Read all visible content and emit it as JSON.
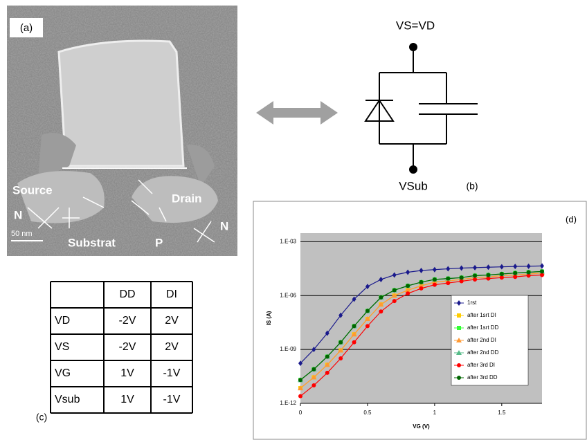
{
  "panel_a": {
    "label": "(a)",
    "annotations": [
      "Source",
      "Drain",
      "N",
      "N",
      "Substrat",
      "P"
    ],
    "scale_bar": "50 nm"
  },
  "panel_b": {
    "label": "(b)",
    "top_node": "VS=VD",
    "bottom_node": "VSub"
  },
  "table": {
    "label": "(c)",
    "header": [
      "DD",
      "DI"
    ],
    "rows": [
      [
        "VD",
        "-2V",
        "2V"
      ],
      [
        "VS",
        "-2V",
        "2V"
      ],
      [
        "VG",
        "1V",
        "-1V"
      ],
      [
        "Vsub",
        "1V",
        "-1V"
      ]
    ]
  },
  "chart_data": {
    "type": "line",
    "panel_label": "(d)",
    "x_label": "VG (V)",
    "y_label": "IS (A)",
    "x": [
      0,
      0.1,
      0.2,
      0.3,
      0.4,
      0.5,
      0.6,
      0.7,
      0.8,
      0.9,
      1.0,
      1.1,
      1.2,
      1.3,
      1.4,
      1.5,
      1.6,
      1.7,
      1.8
    ],
    "xlim": [
      0,
      1.8
    ],
    "xticks": [
      0,
      0.5,
      1,
      1.5
    ],
    "ylim": [
      1e-12,
      0.003
    ],
    "y_log": true,
    "grid": true,
    "background": "#c0c0c0",
    "yticks": [
      {
        "value": 1e-12,
        "label": "1.E-12"
      },
      {
        "value": 1e-09,
        "label": "1.E-09"
      },
      {
        "value": 1e-06,
        "label": "1.E-06"
      },
      {
        "value": 0.001,
        "label": "1.E-03"
      }
    ],
    "series": [
      {
        "name": "1rst",
        "color": "#1a1a8c",
        "marker": "diamond",
        "values": [
          1.7e-10,
          1e-09,
          8e-09,
          8e-08,
          6.3e-07,
          3.2e-06,
          7.9e-06,
          1.4e-05,
          2e-05,
          2.5e-05,
          2.8e-05,
          3.1e-05,
          3.4e-05,
          3.6e-05,
          3.8e-05,
          4e-05,
          4.2e-05,
          4.3e-05,
          4.5e-05
        ]
      },
      {
        "name": "after 1srt DI",
        "color": "#ffcc00",
        "marker": "square",
        "values": [
          7e-12,
          2.8e-11,
          1.4e-10,
          8.9e-10,
          7e-09,
          5e-08,
          3.2e-07,
          1e-06,
          2e-06,
          3.5e-06,
          5.6e-06,
          6.6e-06,
          7.9e-06,
          1e-05,
          1.1e-05,
          1.3e-05,
          1.4e-05,
          1.6e-05,
          1.8e-05
        ]
      },
      {
        "name": "after 1srt DD",
        "color": "#33ff33",
        "marker": "square",
        "values": [
          2e-11,
          7.9e-11,
          4e-10,
          2.5e-09,
          2e-08,
          1.4e-07,
          7.9e-07,
          2e-06,
          3.5e-06,
          5.6e-06,
          7.9e-06,
          8.9e-06,
          1e-05,
          1.3e-05,
          1.4e-05,
          1.6e-05,
          1.8e-05,
          2e-05,
          2.2e-05
        ]
      },
      {
        "name": "after 2nd DI",
        "color": "#ff9933",
        "marker": "triangle",
        "values": [
          7e-12,
          2.8e-11,
          1.4e-10,
          8.9e-10,
          7e-09,
          5e-08,
          3.2e-07,
          1e-06,
          2e-06,
          3.5e-06,
          5.6e-06,
          6.6e-06,
          7.9e-06,
          1e-05,
          1.1e-05,
          1.3e-05,
          1.4e-05,
          1.6e-05,
          1.8e-05
        ]
      },
      {
        "name": "after 2nd DD",
        "color": "#55bb88",
        "marker": "triangle",
        "values": [
          2e-11,
          7.9e-11,
          4e-10,
          2.5e-09,
          2e-08,
          1.4e-07,
          7.9e-07,
          2e-06,
          3.5e-06,
          5.6e-06,
          7.9e-06,
          8.9e-06,
          1e-05,
          1.3e-05,
          1.4e-05,
          1.6e-05,
          1.8e-05,
          2e-05,
          2.2e-05
        ]
      },
      {
        "name": "after 3rd DI",
        "color": "#ff0000",
        "marker": "circle",
        "values": [
          2.5e-12,
          1e-11,
          5e-11,
          3.2e-10,
          2.5e-09,
          2e-08,
          1.3e-07,
          5e-07,
          1.3e-06,
          2.5e-06,
          4e-06,
          5e-06,
          6.3e-06,
          7.9e-06,
          8.9e-06,
          1e-05,
          1.1e-05,
          1.3e-05,
          1.4e-05
        ]
      },
      {
        "name": "after 3rd DD",
        "color": "#006600",
        "marker": "circle",
        "values": [
          2e-11,
          7.9e-11,
          4e-10,
          2.5e-09,
          2e-08,
          1.4e-07,
          7.9e-07,
          2e-06,
          3.5e-06,
          5.6e-06,
          7.9e-06,
          8.9e-06,
          1e-05,
          1.3e-05,
          1.4e-05,
          1.6e-05,
          1.8e-05,
          2e-05,
          2.2e-05
        ]
      }
    ]
  }
}
